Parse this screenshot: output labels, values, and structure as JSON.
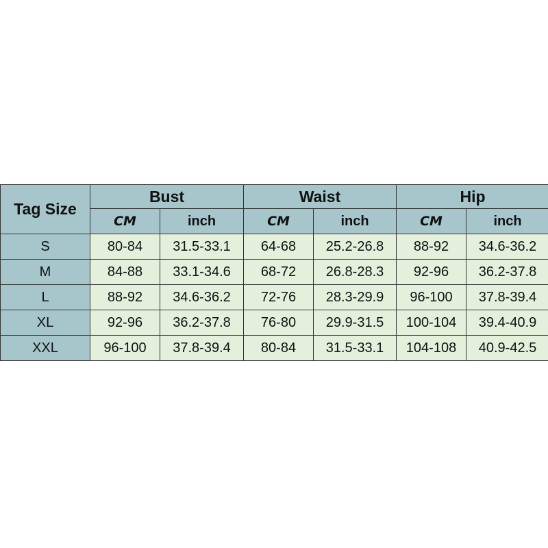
{
  "table": {
    "tag_header": "Tag Size",
    "groups": [
      "Bust",
      "Waist",
      "Hip"
    ],
    "units": [
      "CM",
      "inch",
      "CM",
      "inch",
      "CM",
      "inch"
    ],
    "rows": [
      [
        "S",
        "80-84",
        "31.5-33.1",
        "64-68",
        "25.2-26.8",
        "88-92",
        "34.6-36.2"
      ],
      [
        "M",
        "84-88",
        "33.1-34.6",
        "68-72",
        "26.8-28.3",
        "92-96",
        "36.2-37.8"
      ],
      [
        "L",
        "88-92",
        "34.6-36.2",
        "72-76",
        "28.3-29.9",
        "96-100",
        "37.8-39.4"
      ],
      [
        "XL",
        "92-96",
        "36.2-37.8",
        "76-80",
        "29.9-31.5",
        "100-104",
        "39.4-40.9"
      ],
      [
        "XXL",
        "96-100",
        "37.8-39.4",
        "80-84",
        "31.5-33.1",
        "104-108",
        "40.9-42.5"
      ]
    ]
  },
  "colors": {
    "header_bg": "#a6c6cc",
    "cell_bg": "#e4efdc"
  }
}
